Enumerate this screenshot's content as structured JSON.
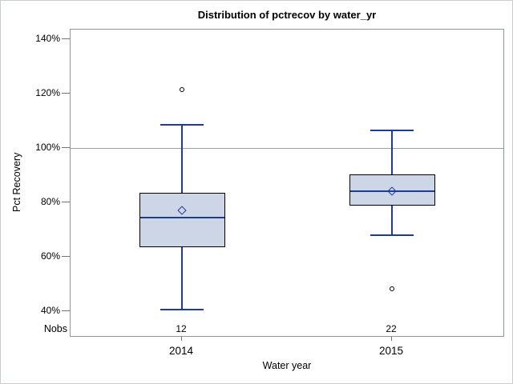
{
  "chart_data": {
    "type": "boxplot",
    "title": "Distribution of pctrecov by water_yr",
    "xlabel": "Water year",
    "ylabel": "Pct Recovery",
    "nobs_label": "Nobs",
    "categories": [
      "2014",
      "2015"
    ],
    "ytick_values": [
      40,
      60,
      80,
      100,
      120,
      140
    ],
    "ytick_suffix": "%",
    "ylim": [
      30.5,
      144
    ],
    "refline_y": 100,
    "grid": false,
    "legend": "none",
    "series": [
      {
        "category": "2014",
        "nobs": "12",
        "whisker_low": 40.5,
        "q1": 63.5,
        "median": 74.5,
        "q3": 83.5,
        "whisker_high": 108.5,
        "mean": 77,
        "outliers": [
          121.3
        ]
      },
      {
        "category": "2015",
        "nobs": "22",
        "whisker_low": 68,
        "q1": 78.8,
        "median": 84,
        "q3": 90.2,
        "whisker_high": 106.5,
        "mean": 84,
        "outliers": [
          48.2
        ]
      }
    ]
  },
  "colors": {
    "background": "#ffffff",
    "frame": "#c9cdcf",
    "axis": "#8e9696",
    "tick": "#6f7577",
    "refline": "#9aa0a0",
    "text": "#000000",
    "box_fill": "#ccd6e6",
    "box_outline": "#000000",
    "box_lines": "#1e3c96",
    "mean_marker": "#1e3c96",
    "outlier": "#000000"
  }
}
